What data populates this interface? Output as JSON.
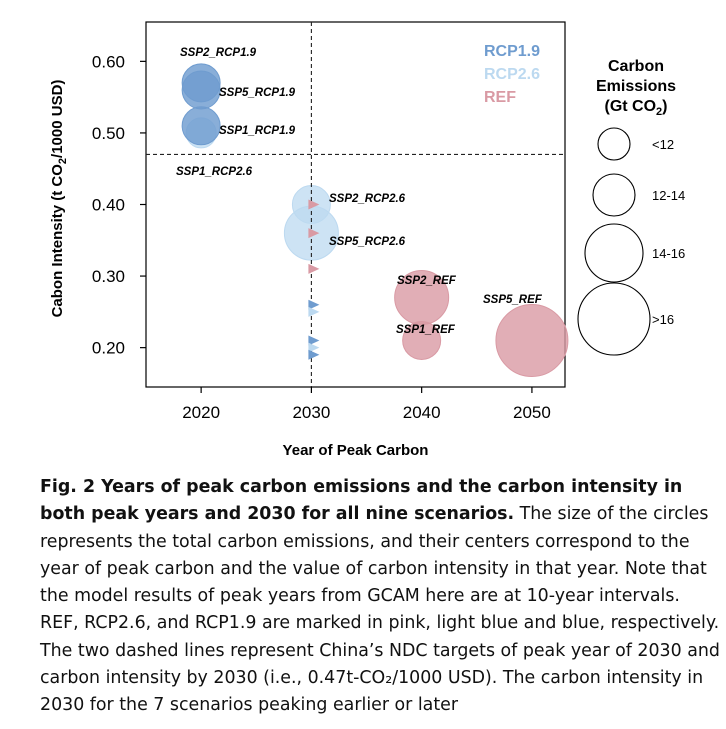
{
  "chart_data": {
    "type": "scatter",
    "xlabel": "Year of Peak Carbon",
    "ylabel_main": "Cabon Intensity (t CO",
    "ylabel_sub": "2",
    "ylabel_end": "/1000 USD)",
    "xlim": [
      2015,
      2053
    ],
    "ylim": [
      0.145,
      0.655
    ],
    "x_ticks": [
      2020,
      2030,
      2040,
      2050
    ],
    "x_tick_labels": [
      "2020",
      "2030",
      "2040",
      "2050"
    ],
    "y_ticks": [
      0.2,
      0.3,
      0.4,
      0.5,
      0.6
    ],
    "y_tick_labels": [
      "0.20",
      "0.30",
      "0.40",
      "0.50",
      "0.60"
    ],
    "reference_lines": [
      {
        "axis": "x",
        "value": 2030,
        "style": "dashed"
      },
      {
        "axis": "y",
        "value": 0.47,
        "style": "dashed"
      }
    ],
    "colors": {
      "RCP1.9": "#6f9ccf",
      "RCP2.6": "#bcd9f0",
      "REF": "#d99aa4"
    },
    "series": [
      {
        "name": "RCP1.9",
        "color": "#6f9ccf"
      },
      {
        "name": "RCP2.6",
        "color": "#bcd9f0"
      },
      {
        "name": "REF",
        "color": "#d99aa4"
      }
    ],
    "bubbles": [
      {
        "label": "SSP2_RCP1.9",
        "group": "RCP1.9",
        "x": 2020,
        "y": 0.57,
        "size_class": "12-14"
      },
      {
        "label": "SSP5_RCP1.9",
        "group": "RCP1.9",
        "x": 2020,
        "y": 0.56,
        "size_class": "12-14"
      },
      {
        "label": "SSP1_RCP1.9",
        "group": "RCP1.9",
        "x": 2020,
        "y": 0.51,
        "size_class": "12-14"
      },
      {
        "label": "SSP1_RCP2.6",
        "group": "RCP2.6",
        "x": 2020,
        "y": 0.5,
        "size_class": "<12"
      },
      {
        "label": "SSP2_RCP2.6",
        "group": "RCP2.6",
        "x": 2030,
        "y": 0.4,
        "size_class": "12-14"
      },
      {
        "label": "SSP5_RCP2.6",
        "group": "RCP2.6",
        "x": 2030,
        "y": 0.36,
        "size_class": "14-16"
      },
      {
        "label": "SSP2_REF",
        "group": "REF",
        "x": 2040,
        "y": 0.27,
        "size_class": "14-16"
      },
      {
        "label": "SSP1_REF",
        "group": "REF",
        "x": 2040,
        "y": 0.21,
        "size_class": "12-14"
      },
      {
        "label": "SSP5_REF",
        "group": "REF",
        "x": 2050,
        "y": 0.21,
        "size_class": ">16"
      }
    ],
    "markers_2030": [
      {
        "group": "REF",
        "y": 0.4
      },
      {
        "group": "REF",
        "y": 0.36
      },
      {
        "group": "REF",
        "y": 0.31
      },
      {
        "group": "RCP1.9",
        "y": 0.26
      },
      {
        "group": "RCP2.6",
        "y": 0.25
      },
      {
        "group": "RCP1.9",
        "y": 0.21
      },
      {
        "group": "RCP2.6",
        "y": 0.2
      },
      {
        "group": "RCP1.9",
        "y": 0.19
      }
    ],
    "size_legend": {
      "title_line1": "Carbon",
      "title_line2": "Emissions",
      "title_line3_main": "(Gt CO",
      "title_line3_sub": "2",
      "title_line3_end": ")",
      "classes": [
        "<12",
        "12-14",
        "14-16",
        ">16"
      ]
    }
  },
  "caption": {
    "lead": "Fig. 2 Years of peak carbon emissions and the carbon intensity in both peak years and 2030 for all nine scenarios.",
    "body": " The size of the circles represents the total carbon emissions, and their centers correspond to the year of peak carbon and the value of carbon intensity in that year. Note that the model results of peak years from GCAM here are at 10-year intervals. REF, RCP2.6, and RCP1.9 are marked in pink, light blue and blue, respectively. The two dashed lines represent China’s NDC targets of peak year of 2030 and carbon intensity by 2030 (i.e., 0.47t-CO₂/1000 USD). The carbon intensity in 2030 for the 7 scenarios peaking earlier or later"
  }
}
